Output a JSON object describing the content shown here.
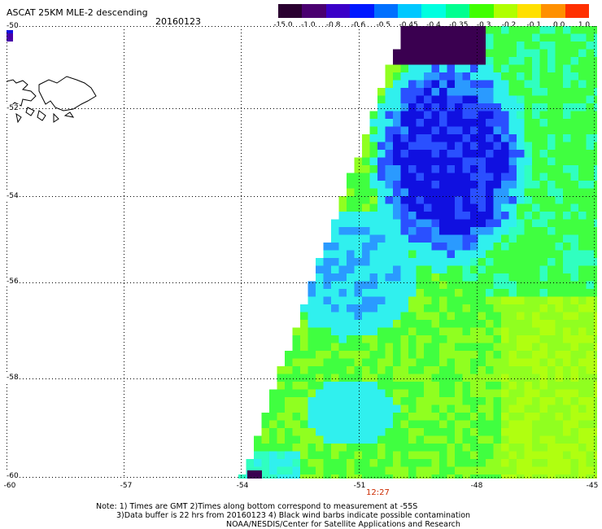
{
  "header": {
    "title": "ASCAT 25KM MLE-2 descending",
    "date": "20160123"
  },
  "colorbar": {
    "labels": [
      "-15.0",
      "-1.0",
      "-0.8",
      "-0.6",
      "-0.5",
      "-0.45",
      "-0.4",
      "-0.35",
      "-0.3",
      "-0.2",
      "-0.1",
      "0.0",
      "1.0"
    ],
    "colors": [
      "#2a0030",
      "#4a0070",
      "#3a00c8",
      "#0018ff",
      "#0070ff",
      "#00c8ff",
      "#00ffe0",
      "#00ff90",
      "#40ff00",
      "#b0ff00",
      "#ffe000",
      "#ff9000",
      "#ff3000"
    ]
  },
  "map": {
    "lat_labels": [
      "-50",
      "-52",
      "-54",
      "-56",
      "-58",
      "-60"
    ],
    "lon_labels": [
      "-60",
      "-57",
      "-54",
      "-51",
      "-48",
      "-45"
    ],
    "time_label": "12:27",
    "colors": {
      "darkest": "#3a0050",
      "purple": "#4800a8",
      "blue": "#1010e0",
      "mid_blue": "#2a50ff",
      "light_blue": "#2a9aff",
      "cyan": "#30f0ee",
      "aqua": "#30ffc0",
      "green": "#40ff40",
      "lime": "#90ff20",
      "yellow_green": "#b0ff10"
    }
  },
  "footer": {
    "line1": "Note: 1) Times are GMT 2)Times along bottom correspond to measurement at -55S",
    "line2": "3)Data buffer is 22 hrs from 20160123 4) Black wind barbs indicate possible contamination",
    "line3": "NOAA/NESDIS/Center for Satellite Applications and Research"
  }
}
